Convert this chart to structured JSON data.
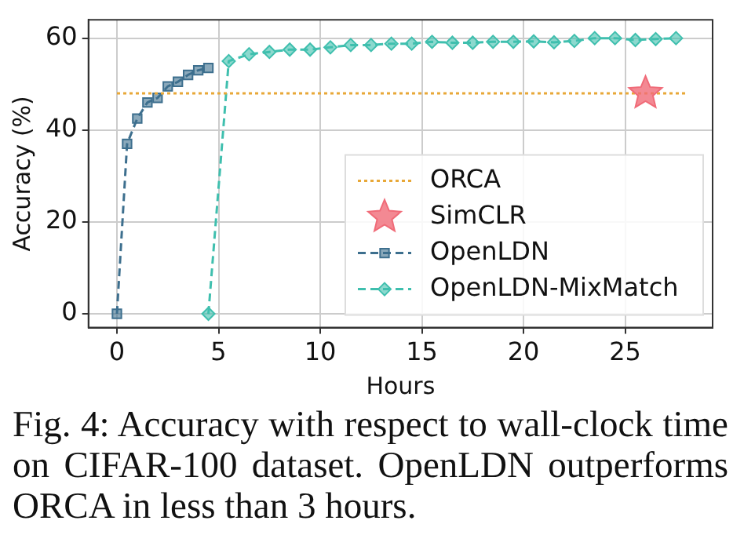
{
  "chart_data": {
    "type": "line",
    "xlabel": "Hours",
    "ylabel": "Accuracy (%)",
    "xlim": [
      -1.4,
      29.3
    ],
    "ylim": [
      -3,
      64
    ],
    "xticks": [
      0,
      5,
      10,
      15,
      20,
      25
    ],
    "yticks": [
      0,
      20,
      40,
      60
    ],
    "grid": true,
    "legend": "bottom right",
    "series": [
      {
        "name": "ORCA",
        "color": "#e8a838",
        "line_style": "dotted",
        "marker": "none",
        "x": [
          0,
          28
        ],
        "values": [
          48,
          48
        ]
      },
      {
        "name": "SimCLR",
        "type": "scatter",
        "color": "#f06b78",
        "marker": "star",
        "x": [
          26
        ],
        "values": [
          48
        ]
      },
      {
        "name": "OpenLDN",
        "color": "#3d6f8e",
        "line_style": "dashed",
        "marker": "square",
        "x": [
          0,
          0.5,
          1,
          1.5,
          2,
          2.5,
          3,
          3.5,
          4,
          4.5
        ],
        "values": [
          0,
          37,
          42.5,
          46,
          47,
          49.5,
          50.5,
          52,
          53,
          53.5
        ]
      },
      {
        "name": "OpenLDN-MixMatch",
        "color": "#3fbfae",
        "line_style": "dashed",
        "marker": "diamond",
        "x": [
          4.5,
          5.5,
          6.5,
          7.5,
          8.5,
          9.5,
          10.5,
          11.5,
          12.5,
          13.5,
          14.5,
          15.5,
          16.5,
          17.5,
          18.5,
          19.5,
          20.5,
          21.5,
          22.5,
          23.5,
          24.5,
          25.5,
          26.5,
          27.5
        ],
        "values": [
          0,
          55,
          56.5,
          57,
          57.5,
          57.5,
          58,
          58.5,
          58.5,
          58.8,
          58.8,
          59.2,
          59,
          59,
          59.2,
          59.2,
          59.3,
          59.1,
          59.4,
          60,
          60,
          59.6,
          59.8,
          60
        ]
      }
    ],
    "annotations": [
      "Fig. 4: Accuracy with respect to wall-clock time on CIFAR-100 dataset. OpenLDN outperforms ORCA in less than 3 hours."
    ]
  }
}
